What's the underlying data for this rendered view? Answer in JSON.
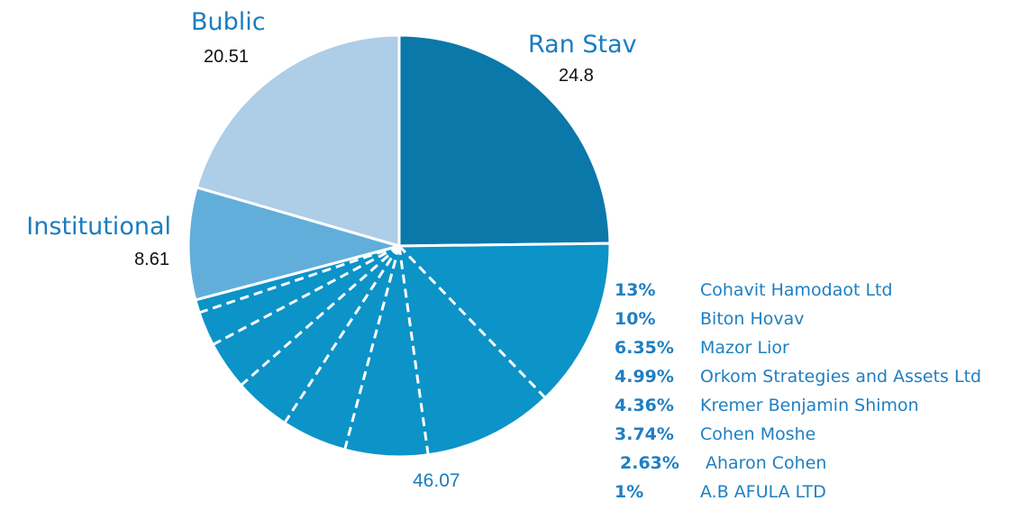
{
  "chart_data": {
    "type": "pie",
    "slices": [
      {
        "label": "Ran Stav",
        "value": 24.8,
        "color": "#0a78a9"
      },
      {
        "label": "",
        "value": 46.07,
        "color": "#0c93c8"
      },
      {
        "label": "Institutional",
        "value": 8.61,
        "color": "#62aedb"
      },
      {
        "label": "Bublic",
        "value": 20.51,
        "color": "#aecde6"
      }
    ],
    "sub_slices_of": 1,
    "sub_slices": [
      {
        "percent": "13%",
        "name": "Cohavit Hamodaot Ltd",
        "value": 13
      },
      {
        "percent": "10%",
        "name": "Biton Hovav",
        "value": 10
      },
      {
        "percent": "6.35%",
        "name": "Mazor Lior",
        "value": 6.35
      },
      {
        "percent": "4.99%",
        "name": "Orkom Strategies and Assets Ltd",
        "value": 4.99
      },
      {
        "percent": "4.36%",
        "name": "Kremer Benjamin Shimon",
        "value": 4.36
      },
      {
        "percent": "3.74%",
        "name": "Cohen Moshe",
        "value": 3.74
      },
      {
        "percent": "2.63%",
        "name": "Aharon Cohen",
        "value": 2.63
      },
      {
        "percent": "1%",
        "name": "A.B AFULA LTD",
        "value": 1
      }
    ]
  }
}
